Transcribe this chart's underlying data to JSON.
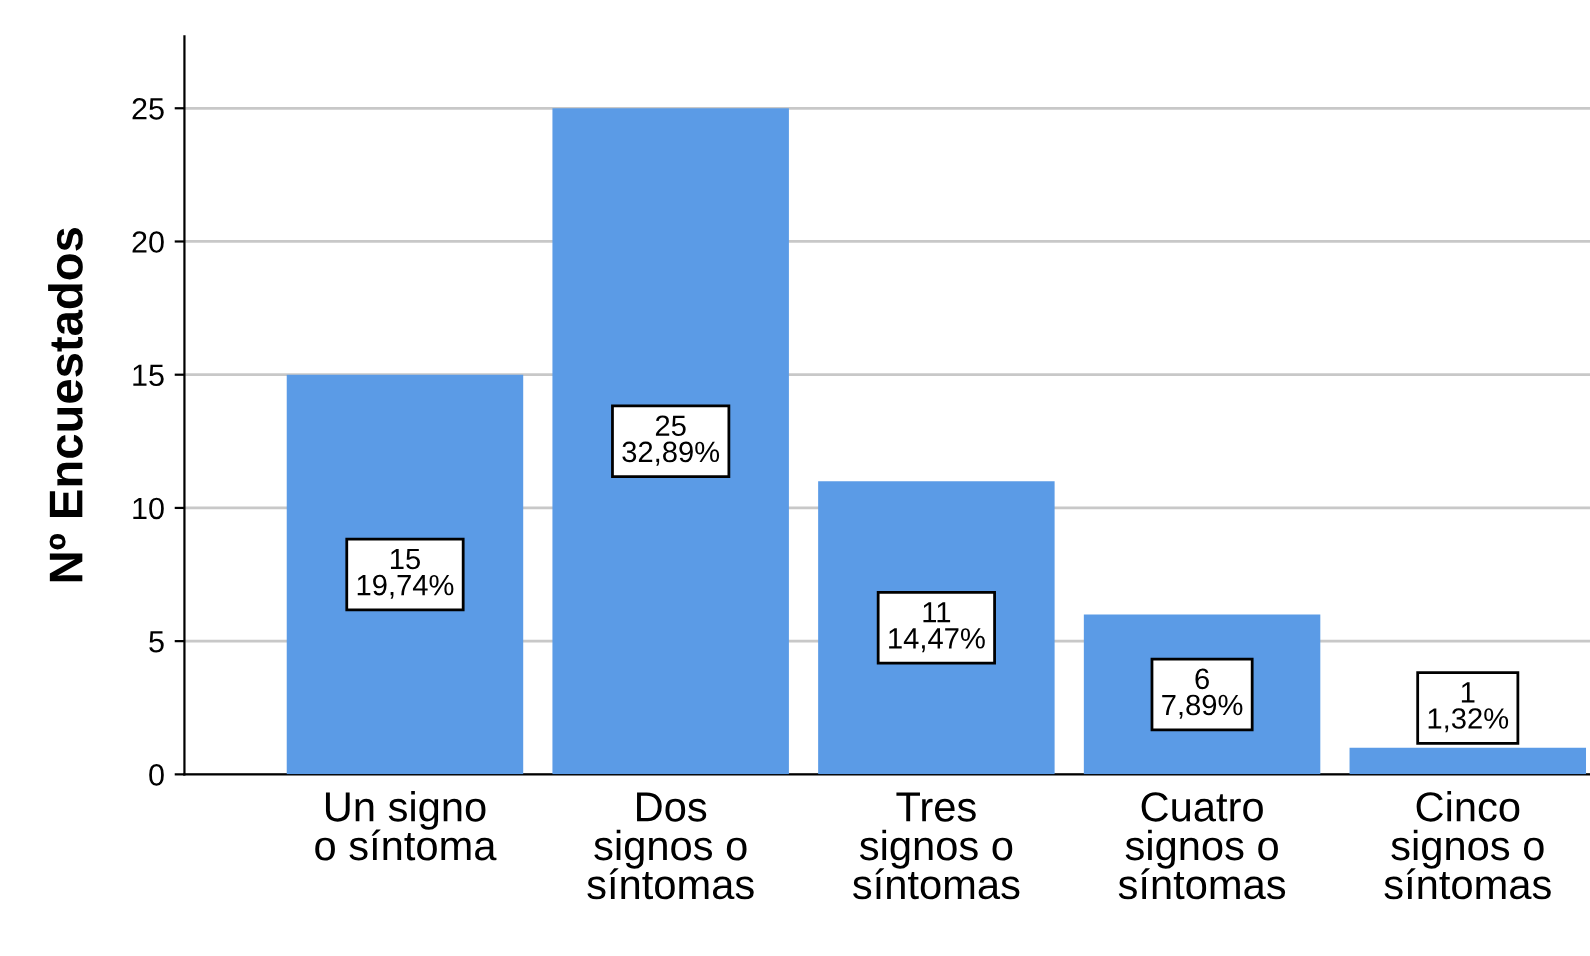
{
  "chart_data": {
    "type": "bar",
    "ylabel": "Nº Encuestados",
    "categories": [
      "Un signo\no síntoma",
      "Dos\nsignos o\nsíntomas",
      "Tres\nsignos o\nsíntomas",
      "Cuatro\nsignos o\nsíntomas",
      "Cinco\nsignos o\nsíntomas"
    ],
    "values": [
      15,
      25,
      11,
      6,
      1
    ],
    "value_labels": [
      "15\n19,74%",
      "25\n32,89%",
      "11\n14,47%",
      "6\n7,89%",
      "1\n1,32%"
    ],
    "color": "#5b9be6",
    "ylim": [
      0,
      27.7
    ],
    "yticks": [
      0,
      5,
      10,
      15,
      20,
      25
    ],
    "grid": "y"
  }
}
